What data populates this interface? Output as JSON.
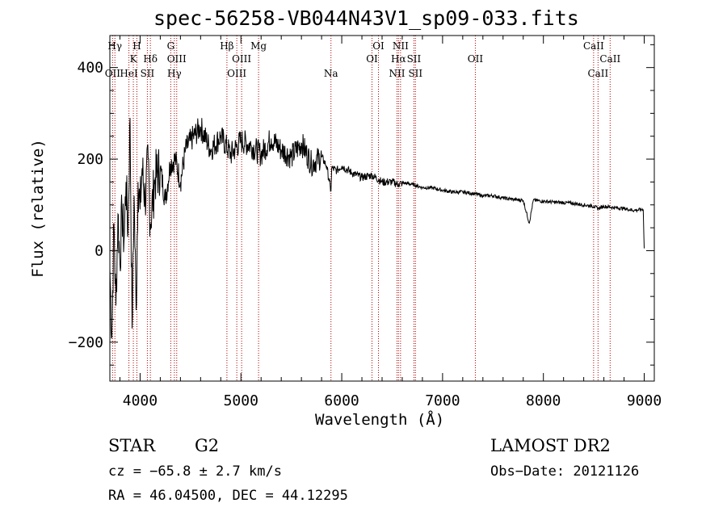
{
  "chart_data": {
    "type": "line",
    "title": "spec-56258-VB044N43V1_sp09-033.fits",
    "xlabel": "Wavelength (Å)",
    "ylabel": "Flux (relative)",
    "xlim": [
      3700,
      9100
    ],
    "ylim": [
      -285,
      470
    ],
    "x_ticks": [
      4000,
      5000,
      6000,
      7000,
      8000,
      9000
    ],
    "y_ticks": [
      -200,
      0,
      200,
      400
    ],
    "x_tick_labels": [
      "4000",
      "5000",
      "6000",
      "7000",
      "8000",
      "9000"
    ],
    "y_tick_labels": [
      "−200",
      "0",
      "200",
      "400"
    ],
    "series": [
      {
        "name": "Flux",
        "color": "#000000",
        "x": [
          3700,
          3720,
          3740,
          3760,
          3780,
          3800,
          3820,
          3840,
          3860,
          3880,
          3900,
          3920,
          3940,
          3960,
          3980,
          4000,
          4020,
          4050,
          4080,
          4100,
          4150,
          4200,
          4250,
          4300,
          4350,
          4400,
          4450,
          4500,
          4600,
          4700,
          4800,
          4900,
          5000,
          5100,
          5200,
          5300,
          5400,
          5500,
          5600,
          5700,
          5800,
          5850,
          5893,
          5900,
          5950,
          6000,
          6100,
          6200,
          6300,
          6400,
          6500,
          6563,
          6600,
          6700,
          6800,
          6900,
          7000,
          7100,
          7200,
          7300,
          7400,
          7500,
          7600,
          7700,
          7800,
          7860,
          7900,
          8000,
          8100,
          8200,
          8300,
          8400,
          8500,
          8542,
          8600,
          8700,
          8800,
          8900,
          8990,
          9000
        ],
        "y": [
          -40,
          -190,
          60,
          -120,
          80,
          -30,
          90,
          20,
          150,
          40,
          290,
          -170,
          120,
          -130,
          150,
          90,
          180,
          110,
          200,
          60,
          160,
          180,
          110,
          190,
          200,
          150,
          220,
          240,
          270,
          220,
          250,
          210,
          240,
          230,
          210,
          245,
          220,
          205,
          235,
          190,
          205,
          185,
          130,
          180,
          175,
          185,
          170,
          160,
          165,
          150,
          150,
          145,
          148,
          145,
          138,
          137,
          132,
          128,
          128,
          125,
          120,
          120,
          115,
          112,
          110,
          60,
          110,
          108,
          106,
          105,
          103,
          100,
          97,
          92,
          97,
          94,
          92,
          88,
          90,
          5
        ]
      }
    ],
    "line_markers": [
      {
        "label": "Hγ",
        "x": 3750,
        "row": 0
      },
      {
        "label": "H",
        "x": 3968,
        "row": 0
      },
      {
        "label": "G",
        "x": 4304,
        "row": 0
      },
      {
        "label": "Hβ",
        "x": 4861,
        "row": 0
      },
      {
        "label": "Mg",
        "x": 5175,
        "row": 0
      },
      {
        "label": "OI",
        "x": 6364,
        "row": 0
      },
      {
        "label": "NII",
        "x": 6583,
        "row": 0
      },
      {
        "label": "CaII",
        "x": 8498,
        "row": 0
      },
      {
        "label": "K",
        "x": 3933,
        "row": 1
      },
      {
        "label": "Hδ",
        "x": 4102,
        "row": 1
      },
      {
        "label": "OIII",
        "x": 4363,
        "row": 1
      },
      {
        "label": "OIII",
        "x": 5007,
        "row": 1
      },
      {
        "label": "OI",
        "x": 6300,
        "row": 1
      },
      {
        "label": "Hα",
        "x": 6563,
        "row": 1
      },
      {
        "label": "SII",
        "x": 6716,
        "row": 1
      },
      {
        "label": "OII",
        "x": 7325,
        "row": 1
      },
      {
        "label": "CaII",
        "x": 8662,
        "row": 1
      },
      {
        "label": "OII",
        "x": 3727,
        "row": 2
      },
      {
        "label": "HeI",
        "x": 3889,
        "row": 2
      },
      {
        "label": "SII",
        "x": 4072,
        "row": 2
      },
      {
        "label": "Hγ",
        "x": 4340,
        "row": 2
      },
      {
        "label": "OIII",
        "x": 4959,
        "row": 2
      },
      {
        "label": "Na",
        "x": 5893,
        "row": 2
      },
      {
        "label": "NII",
        "x": 6548,
        "row": 2
      },
      {
        "label": "SII",
        "x": 6731,
        "row": 2
      },
      {
        "label": "CaII",
        "x": 8542,
        "row": 2
      }
    ],
    "marker_color": "#b00000"
  },
  "info": {
    "class": "STAR",
    "subclass": "G2",
    "cz": "cz = −65.8 ± 2.7 km/s",
    "radec": "RA =  46.04500, DEC =  44.12295",
    "survey": "LAMOST DR2",
    "obsdate": "Obs−Date: 20121126"
  }
}
